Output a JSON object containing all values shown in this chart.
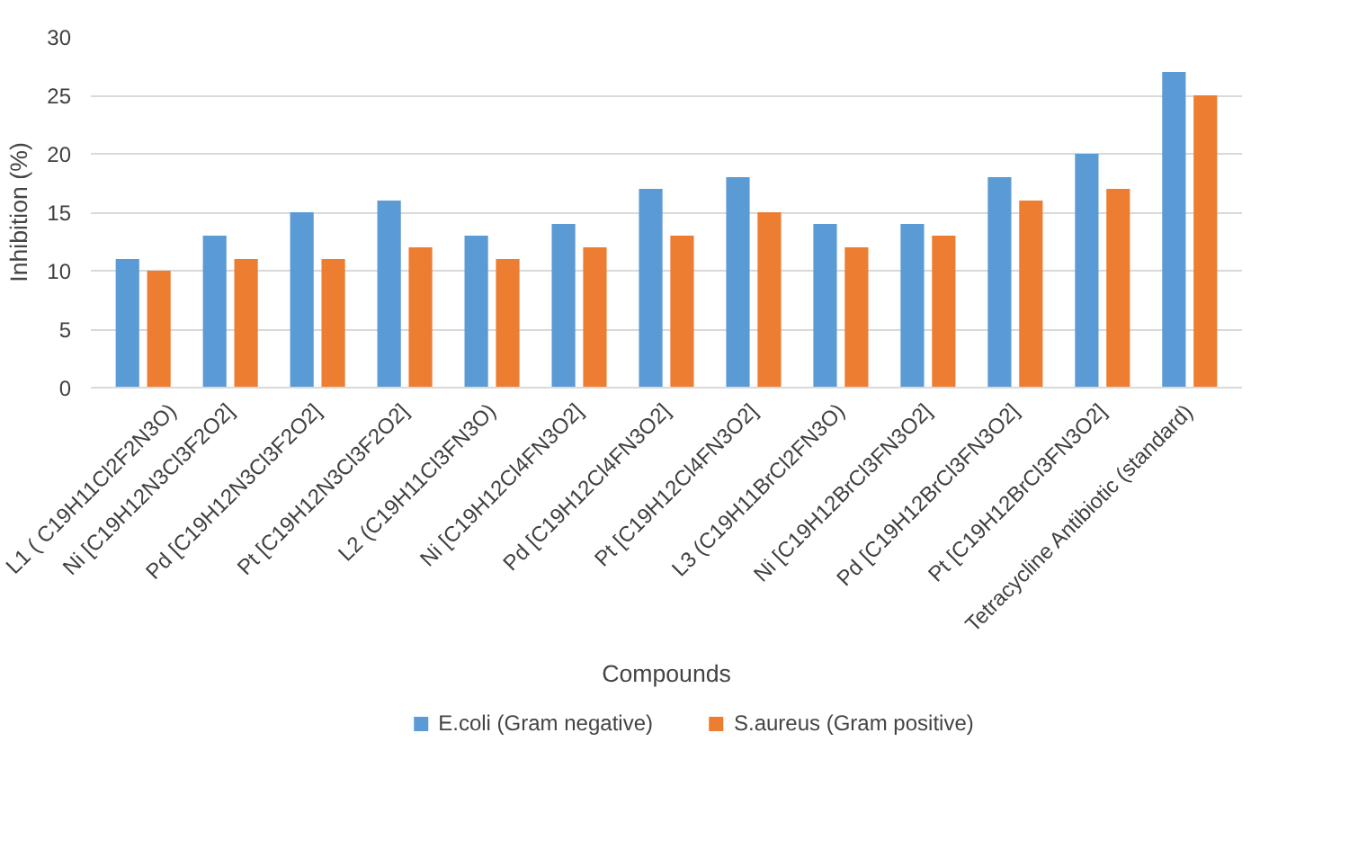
{
  "chart_data": {
    "type": "bar",
    "xlabel": "Compounds",
    "ylabel": "Inhibition (%)",
    "categories": [
      "L1 ( C19H11Cl2F2N3O)",
      "Ni [C19H12N3Cl3F2O2]",
      "Pd [C19H12N3Cl3F2O2]",
      "Pt [C19H12N3Cl3F2O2]",
      "L2 (C19H11Cl3FN3O)",
      "Ni [C19H12Cl4FN3O2]",
      "Pd [C19H12Cl4FN3O2]",
      "Pt [C19H12Cl4FN3O2]",
      "L3 (C19H11BrCl2FN3O)",
      "Ni [C19H12BrCl3FN3O2]",
      "Pd [C19H12BrCl3FN3O2]",
      "Pt [C19H12BrCl3FN3O2]",
      "Tetracycline Antibiotic (standard)"
    ],
    "series": [
      {
        "name": "E.coli (Gram negative)",
        "color": "#5b9bd5",
        "values": [
          11,
          13,
          15,
          16,
          13,
          14,
          17,
          18,
          14,
          14,
          18,
          20,
          27
        ]
      },
      {
        "name": "S.aureus (Gram positive)",
        "color": "#ed7d31",
        "values": [
          10,
          11,
          11,
          12,
          11,
          12,
          13,
          15,
          12,
          13,
          16,
          17,
          25
        ]
      }
    ],
    "ylim": [
      0,
      30
    ],
    "yticks": [
      0,
      5,
      10,
      15,
      20,
      25,
      30
    ],
    "grid": "y",
    "legend": "bottom"
  }
}
